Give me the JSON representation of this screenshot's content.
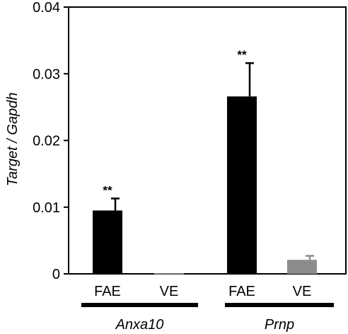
{
  "chart_data": {
    "type": "bar",
    "title": "",
    "xlabel": "",
    "ylabel": "Target / Gapdh",
    "ylim": [
      0,
      0.04
    ],
    "yticks": [
      "0",
      "0.01",
      "0.02",
      "0.03",
      "0.04"
    ],
    "categories": [
      "FAE",
      "VE",
      "FAE",
      "VE"
    ],
    "groups": [
      {
        "label": "Anxa10",
        "categories": [
          "FAE",
          "VE"
        ]
      },
      {
        "label": "Prnp",
        "categories": [
          "FAE",
          "VE"
        ]
      }
    ],
    "values": [
      0.0095,
      0.0001,
      0.0266,
      0.0021
    ],
    "errors": [
      0.0018,
      0.0001,
      0.005,
      0.0006
    ],
    "significance": [
      "**",
      "",
      "**",
      ""
    ],
    "colors": [
      "#000000",
      "#8c8c8c",
      "#000000",
      "#8c8c8c"
    ],
    "grid": false
  }
}
